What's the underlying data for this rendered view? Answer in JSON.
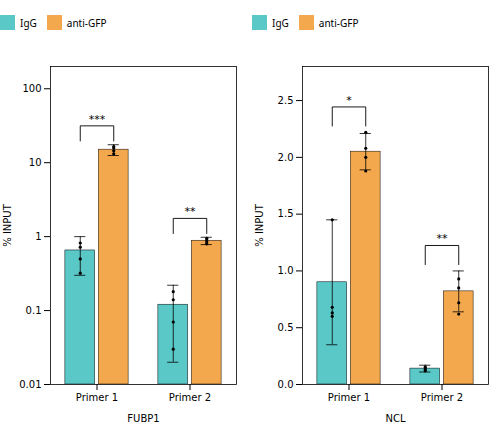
{
  "chart_data": [
    {
      "type": "bar",
      "x_label": "FUBP1",
      "y_label": "% INPUT",
      "categories": [
        "Primer 1",
        "Primer 2"
      ],
      "series": [
        {
          "name": "IgG",
          "color": "#5BC8C8",
          "values": [
            0.65,
            0.12
          ],
          "errors": [
            0.35,
            0.1
          ],
          "dots": [
            [
              0.32,
              0.5,
              0.72,
              0.82
            ],
            [
              0.03,
              0.07,
              0.14,
              0.18
            ]
          ]
        },
        {
          "name": "anti-GFP",
          "color": "#F4A84E",
          "values": [
            15.0,
            0.88
          ],
          "errors": [
            2.5,
            0.1
          ],
          "dots": [
            [
              13.2,
              14.5,
              15.8,
              16.5
            ],
            [
              0.8,
              0.85,
              0.9,
              0.95
            ]
          ]
        }
      ],
      "log": "y",
      "ylim": [
        0.01,
        200
      ],
      "yticks": [
        0.01,
        0.1,
        1,
        10,
        100
      ],
      "legend": "top",
      "annotations": [
        {
          "text": "***",
          "category": "Primer 1"
        },
        {
          "text": "**",
          "category": "Primer 2"
        }
      ]
    },
    {
      "type": "bar",
      "x_label": "NCL",
      "y_label": "% INPUT",
      "categories": [
        "Primer 1",
        "Primer 2"
      ],
      "series": [
        {
          "name": "IgG",
          "color": "#5BC8C8",
          "values": [
            0.9,
            0.14
          ],
          "errors": [
            0.55,
            0.03
          ],
          "dots": [
            [
              0.6,
              0.63,
              0.68,
              1.45
            ],
            [
              0.12,
              0.13,
              0.145,
              0.155
            ]
          ]
        },
        {
          "name": "anti-GFP",
          "color": "#F4A84E",
          "values": [
            2.05,
            0.82
          ],
          "errors": [
            0.16,
            0.18
          ],
          "dots": [
            [
              1.88,
              2.0,
              2.08,
              2.22
            ],
            [
              0.62,
              0.72,
              0.85,
              0.93
            ]
          ]
        }
      ],
      "ylim": [
        0,
        2.8
      ],
      "yticks": [
        {
          "value": 0,
          "label": "0.0"
        },
        0.5,
        {
          "value": 1,
          "label": "1.0"
        },
        1.5,
        {
          "value": 2,
          "label": "2.0"
        },
        2.5
      ],
      "legend": "top",
      "annotations": [
        {
          "text": "*",
          "category": "Primer 1"
        },
        {
          "text": "**",
          "category": "Primer 2"
        }
      ]
    }
  ]
}
